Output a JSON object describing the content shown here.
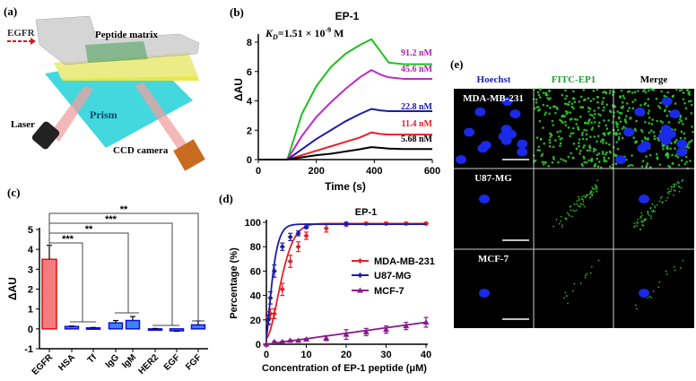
{
  "panel_a": {
    "label": "(a)",
    "egfr": "EGFR",
    "peptide_matrix": "Peptide matrix",
    "prism": "Prism",
    "laser": "Laser",
    "ccd_camera": "CCD camera"
  },
  "chart_data": [
    {
      "panel": "(b)",
      "type": "line",
      "title": "EP-1",
      "annotation": "K_D=1.51 × 10^-9 M",
      "annotation_parts": {
        "k": "K",
        "sub": "D",
        "eq": "=1.51 × 10",
        "exp": "-9",
        "unit": " M"
      },
      "xlabel": "Time (s)",
      "ylabel": "ΔAU",
      "xlim": [
        0,
        600
      ],
      "ylim": [
        0,
        8.5
      ],
      "xticks": [
        "0",
        "200",
        "400",
        "600"
      ],
      "yticks": [
        "0",
        "2",
        "4",
        "6",
        "8"
      ],
      "x": [
        0,
        100,
        150,
        200,
        250,
        300,
        350,
        390,
        420,
        450,
        500,
        600
      ],
      "series": [
        {
          "name": "91.2 nM",
          "color": "#20c020",
          "label_color": "#b020b0",
          "values": [
            0,
            0,
            3.1,
            5.0,
            6.3,
            7.2,
            7.8,
            8.2,
            7.4,
            6.6,
            6.5,
            6.5
          ]
        },
        {
          "name": "45.6 nM",
          "color": "#c028c8",
          "label_color": "#b020b0",
          "values": [
            0,
            0,
            1.6,
            2.9,
            3.9,
            4.8,
            5.6,
            6.1,
            5.8,
            5.6,
            5.5,
            5.5
          ]
        },
        {
          "name": "22.8 nM",
          "color": "#1c1ca8",
          "label_color": "#1c1ca8",
          "values": [
            0,
            0,
            0.7,
            1.4,
            2.0,
            2.6,
            3.1,
            3.45,
            3.35,
            3.3,
            3.3,
            3.3
          ]
        },
        {
          "name": "11.4 nM",
          "color": "#e8202a",
          "label_color": "#e8202a",
          "values": [
            0,
            0,
            0.3,
            0.6,
            0.9,
            1.2,
            1.5,
            1.85,
            1.75,
            1.7,
            1.7,
            1.7
          ]
        },
        {
          "name": "5.68 nM",
          "color": "#000000",
          "label_color": "#000000",
          "values": [
            0,
            0,
            0.15,
            0.3,
            0.4,
            0.55,
            0.7,
            0.85,
            0.8,
            0.75,
            0.72,
            0.72
          ]
        }
      ]
    },
    {
      "panel": "(c)",
      "type": "bar",
      "ylabel": "ΔAU",
      "ylim": [
        -1,
        5
      ],
      "yticks": [
        "-1",
        "0",
        "1",
        "2",
        "3",
        "4",
        "5"
      ],
      "categories": [
        "EGFR",
        "HSA",
        "Tf",
        "IgG",
        "IgM",
        "HER2",
        "EGF",
        "FGF"
      ],
      "values": [
        3.5,
        0.12,
        0.05,
        0.3,
        0.42,
        0.0,
        -0.1,
        0.2
      ],
      "errors": [
        0.7,
        0.02,
        0.02,
        0.12,
        0.2,
        0.02,
        0.02,
        0.2
      ],
      "colors": {
        "EGFR": "#f47c7c",
        "EGFR_edge": "#e01010",
        "others": "#3a86f0",
        "others_edge": "#1010d0"
      },
      "significance": [
        {
          "vs": [
            "HSA",
            "Tf"
          ],
          "label": "***"
        },
        {
          "vs": [
            "IgG",
            "IgM"
          ],
          "label": "**"
        },
        {
          "vs": [
            "HER2",
            "EGF"
          ],
          "label": "***"
        },
        {
          "vs": [
            "FGF"
          ],
          "label": "**"
        }
      ]
    },
    {
      "panel": "(d)",
      "type": "scatter",
      "title": "EP-1",
      "xlabel": "Concentration of EP-1 peptide (μM)",
      "ylabel": "Percentage (%)",
      "xlim": [
        0,
        40
      ],
      "ylim": [
        0,
        100
      ],
      "xticks": [
        "0",
        "10",
        "20",
        "30",
        "40"
      ],
      "yticks": [
        "0",
        "20",
        "40",
        "60",
        "80",
        "100"
      ],
      "legend_position": "right",
      "series": [
        {
          "name": "MDA-MB-231",
          "color": "#e8202a",
          "marker": "diamond",
          "x": [
            0.5,
            1,
            2,
            4,
            6,
            8,
            10,
            15,
            20,
            25,
            30,
            35,
            40
          ],
          "values": [
            22,
            25,
            25,
            45,
            68,
            80,
            89,
            95,
            98,
            99,
            99,
            99,
            99
          ],
          "errors": [
            5,
            4,
            4,
            5,
            5,
            4,
            3,
            3,
            1,
            1,
            1,
            1,
            1
          ]
        },
        {
          "name": "U87-MG",
          "color": "#1c1ca8",
          "marker": "diamond",
          "x": [
            0.5,
            1,
            2,
            4,
            6,
            8,
            10,
            20
          ],
          "values": [
            20,
            38,
            60,
            80,
            88,
            91,
            96,
            99
          ],
          "errors": [
            4,
            5,
            5,
            3,
            3,
            2,
            1,
            1
          ]
        },
        {
          "name": "MCF-7",
          "color": "#8a1a8a",
          "marker": "triangle",
          "x": [
            0,
            2,
            4,
            6,
            8,
            10,
            15,
            20,
            25,
            30,
            35,
            40
          ],
          "values": [
            0,
            2,
            2,
            3,
            3,
            4,
            5,
            8,
            10,
            12,
            15,
            18
          ],
          "errors": [
            0.5,
            0.5,
            0.5,
            0.5,
            0.5,
            0.5,
            2,
            4,
            3,
            3,
            3,
            4
          ]
        }
      ]
    }
  ],
  "panel_e": {
    "label": "(e)",
    "columns": [
      {
        "label": "Hoechst",
        "color": "#1c1cc8"
      },
      {
        "label": "FITC-EP1",
        "color": "#20a030"
      },
      {
        "label": "Merge",
        "color": "#000000"
      }
    ],
    "rows": [
      "MDA-MB-231",
      "U87-MG",
      "MCF-7"
    ]
  }
}
